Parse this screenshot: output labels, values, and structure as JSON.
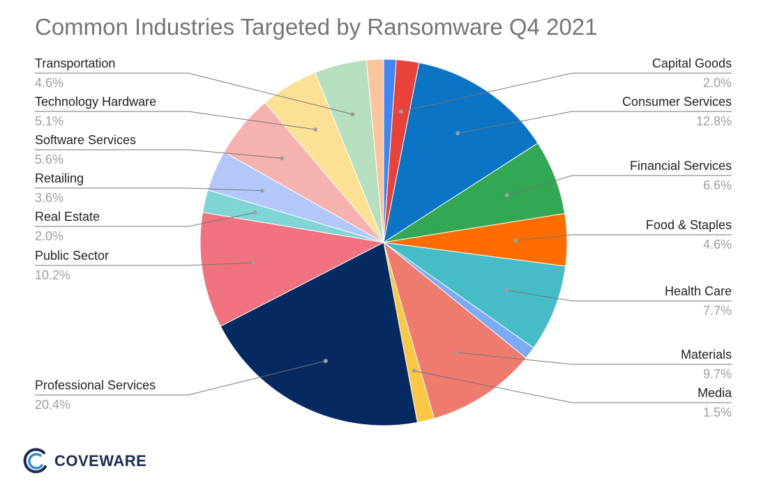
{
  "chart_data": {
    "type": "pie",
    "title": "Common Industries Targeted by Ransomware Q4 2021",
    "slices": [
      {
        "label": "",
        "value": 1.1,
        "color": "#4285f4"
      },
      {
        "label": "Capital Goods",
        "value": 2.0,
        "display": "2.0%",
        "color": "#e8423b"
      },
      {
        "label": "Consumer Services",
        "value": 12.8,
        "display": "12.8%",
        "color": "#0b74c4"
      },
      {
        "label": "Financial Services",
        "value": 6.6,
        "display": "6.6%",
        "color": "#33a853"
      },
      {
        "label": "Food & Staples",
        "value": 4.6,
        "display": "4.6%",
        "color": "#ff6d01"
      },
      {
        "label": "Health Care",
        "value": 7.7,
        "display": "7.7%",
        "color": "#46bdc6"
      },
      {
        "label": "",
        "value": 1.1,
        "color": "#7baaf7"
      },
      {
        "label": "Materials",
        "value": 9.7,
        "display": "9.7%",
        "color": "#ef7b6f"
      },
      {
        "label": "Media",
        "value": 1.5,
        "display": "1.5%",
        "color": "#fbc845"
      },
      {
        "label": "Professional Services",
        "value": 20.4,
        "display": "20.4%",
        "color": "#042a61"
      },
      {
        "label": "Public Sector",
        "value": 10.2,
        "display": "10.2%",
        "color": "#f0727e"
      },
      {
        "label": "Real Estate",
        "value": 2.0,
        "display": "2.0%",
        "color": "#7fd4d5"
      },
      {
        "label": "Retailing",
        "value": 3.6,
        "display": "3.6%",
        "color": "#b3c8fa"
      },
      {
        "label": "Software Services",
        "value": 5.6,
        "display": "5.6%",
        "color": "#f6b2af"
      },
      {
        "label": "Technology Hardware",
        "value": 5.1,
        "display": "5.1%",
        "color": "#fce194"
      },
      {
        "label": "Transportation",
        "value": 4.6,
        "display": "4.6%",
        "color": "#b6dfbf"
      },
      {
        "label": "",
        "value": 1.5,
        "color": "#fbc59b"
      }
    ]
  },
  "logo": {
    "text": "COVEWARE"
  }
}
